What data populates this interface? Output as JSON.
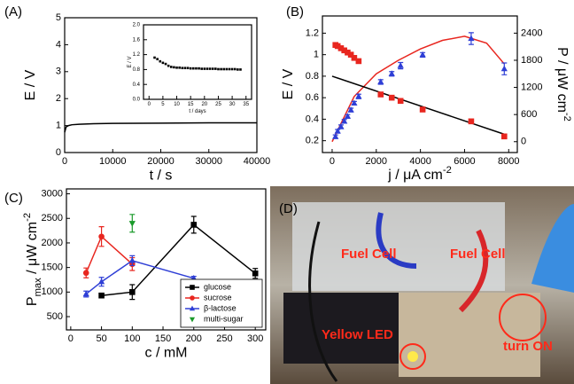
{
  "chart_data": [
    {
      "type": "line",
      "panel": "(A)",
      "xlabel": "t / s",
      "ylabel": "E / V",
      "x": [
        0,
        300,
        800,
        1500,
        3000,
        6000,
        10000,
        20000,
        30000,
        40000
      ],
      "series": [
        {
          "color": "#000000",
          "values": [
            0.75,
            0.95,
            1.0,
            1.03,
            1.05,
            1.07,
            1.08,
            1.09,
            1.1,
            1.1
          ]
        }
      ],
      "xlim": [
        0,
        40000
      ],
      "xticks": [
        0,
        10000,
        20000,
        30000,
        40000
      ],
      "ylim": [
        0,
        5
      ],
      "yticks": [
        0,
        1,
        2,
        3,
        4,
        5
      ],
      "inset": {
        "type": "scatter",
        "xlabel": "t / days",
        "ylabel": "E / V",
        "x": [
          2,
          3,
          4,
          5,
          6,
          7,
          8,
          9,
          10,
          11,
          12,
          13,
          14,
          15,
          16,
          17,
          18,
          19,
          20,
          21,
          22,
          23,
          24,
          25,
          26,
          27,
          28,
          29,
          30,
          31,
          32,
          33
        ],
        "series": [
          {
            "color": "#000000",
            "marker": "square",
            "values": [
              1.12,
              1.08,
              1.02,
              0.98,
              0.95,
              0.9,
              0.87,
              0.86,
              0.85,
              0.85,
              0.84,
              0.84,
              0.84,
              0.83,
              0.83,
              0.83,
              0.83,
              0.82,
              0.82,
              0.82,
              0.82,
              0.82,
              0.82,
              0.81,
              0.81,
              0.81,
              0.81,
              0.81,
              0.81,
              0.81,
              0.8,
              0.8
            ]
          }
        ],
        "xlim": [
          -2,
          37
        ],
        "xticks": [
          0,
          5,
          10,
          15,
          20,
          25,
          30,
          35
        ],
        "ylim": [
          0,
          2
        ],
        "yticks": [
          {
            "value": 0,
            "label": "0.0"
          },
          {
            "value": 0.4,
            "label": "0.4"
          },
          {
            "value": 0.8,
            "label": "0.8"
          },
          {
            "value": 1.2,
            "label": "1.2"
          },
          {
            "value": 1.6,
            "label": "1.6"
          },
          {
            "value": 2,
            "label": "2.0"
          }
        ]
      }
    },
    {
      "type": "scatter",
      "panel": "(B)",
      "xlabel": {
        "text": "j / μA cm",
        "sup": "-2"
      },
      "ylabel": "E / V",
      "y2label": {
        "text": "P / μW cm",
        "sup": "-2"
      },
      "x": [
        150,
        250,
        400,
        550,
        700,
        850,
        1000,
        1200,
        2200,
        2700,
        3100,
        4100,
        6300,
        7800
      ],
      "series": [
        {
          "color": "#e8261f",
          "marker": "square",
          "values": [
            1.09,
            1.08,
            1.06,
            1.04,
            1.02,
            1.0,
            0.97,
            0.94,
            0.63,
            0.6,
            0.57,
            0.49,
            0.38,
            0.24
          ]
        },
        {
          "color": "#2f3fd6",
          "marker": "triangle",
          "axis": "y2",
          "values": [
            110,
            230,
            330,
            450,
            560,
            700,
            850,
            1000,
            1320,
            1500,
            1680,
            1920,
            2280,
            1610
          ],
          "errors": [
            40,
            40,
            40,
            40,
            40,
            40,
            40,
            50,
            50,
            50,
            70,
            50,
            130,
            130
          ]
        }
      ],
      "fits": [
        {
          "color": "#e8261f",
          "axis": "y2",
          "x": [
            0,
            1000,
            2000,
            3000,
            4000,
            5000,
            6000,
            7000,
            7800
          ],
          "values": [
            0,
            1000,
            1500,
            1800,
            2050,
            2240,
            2330,
            2180,
            1720
          ]
        },
        {
          "color": "#000000",
          "x": [
            0,
            7800
          ],
          "values": [
            0.8,
            0.26
          ]
        }
      ],
      "xlim": [
        -440,
        8390
      ],
      "xticks": [
        0,
        2000,
        4000,
        6000,
        8000
      ],
      "ylim": [
        0.09,
        1.36
      ],
      "yticks": [
        0.2,
        0.4,
        0.6,
        0.8,
        1.0,
        1.2
      ],
      "y2lim": [
        -240,
        2780
      ],
      "y2ticks": [
        0,
        600,
        1200,
        1800,
        2400
      ]
    },
    {
      "type": "scatter",
      "panel": "(C)",
      "xlabel": "c / mM",
      "ylabel": {
        "text": "P",
        "sub": "max",
        "rest": " / μW cm",
        "sup": "-2"
      },
      "series": [
        {
          "name": "glucose",
          "color": "#000000",
          "marker": "square",
          "line": true,
          "x": [
            50,
            100,
            200,
            300
          ],
          "values": [
            930,
            1000,
            2370,
            1380
          ],
          "errors": [
            40,
            150,
            170,
            100
          ]
        },
        {
          "name": "sucrose",
          "color": "#e8261f",
          "marker": "circle",
          "line": true,
          "x": [
            25,
            50,
            100
          ],
          "values": [
            1390,
            2130,
            1570
          ],
          "errors": [
            100,
            200,
            130
          ]
        },
        {
          "name": "β-lactose",
          "color": "#2f3fd6",
          "marker": "triangle",
          "line": true,
          "x": [
            25,
            50,
            100,
            200
          ],
          "values": [
            960,
            1210,
            1640,
            1280
          ],
          "errors": [
            60,
            90,
            100,
            40
          ]
        },
        {
          "name": "multi-sugar",
          "color": "#1a9a2a",
          "marker": "triangle-down",
          "line": false,
          "x": [
            100
          ],
          "values": [
            2400
          ],
          "errors": [
            180
          ]
        }
      ],
      "xlim": [
        -7,
        317
      ],
      "xticks": [
        0,
        50,
        100,
        150,
        200,
        250,
        300
      ],
      "ylim": [
        230,
        3100
      ],
      "yticks": [
        500,
        1000,
        1500,
        2000,
        2500,
        3000
      ],
      "legend": "lower right"
    }
  ],
  "photo": {
    "label": "(D)",
    "annotations": [
      "Fuel Cell",
      "Fuel Cell",
      "Yellow LED",
      "turn ON"
    ]
  }
}
